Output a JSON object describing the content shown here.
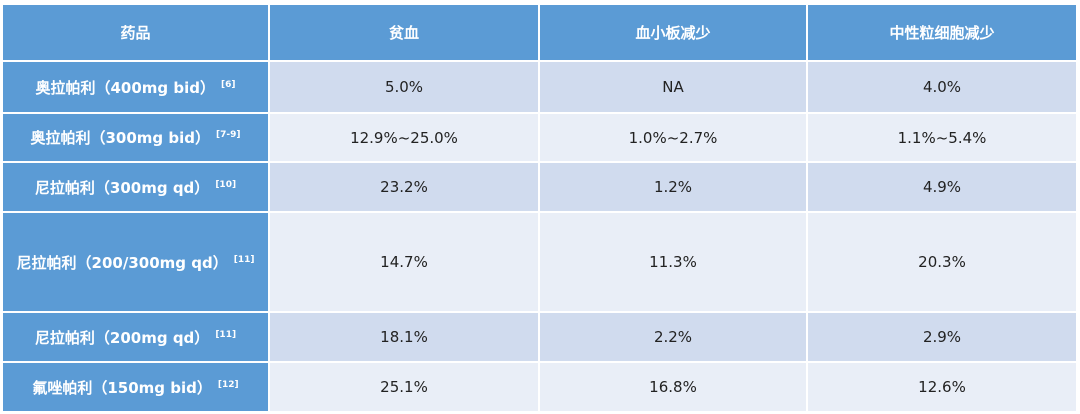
{
  "table": {
    "header": [
      "药品",
      "贫血",
      "血小板减少",
      "中性粒细胞减少"
    ],
    "rows": [
      {
        "drug": "奥拉帕利（400mg bid）",
        "ref": "[6]",
        "values": [
          "5.0%",
          "NA",
          "4.0%"
        ]
      },
      {
        "drug": "奥拉帕利（300mg bid）",
        "ref": "[7-9]",
        "values": [
          "12.9%~25.0%",
          "1.0%~2.7%",
          "1.1%~5.4%"
        ]
      },
      {
        "drug": "尼拉帕利（300mg qd）",
        "ref": "[10]",
        "values": [
          "23.2%",
          "1.2%",
          "4.9%"
        ]
      },
      {
        "drug": "尼拉帕利（200/300mg qd）",
        "ref": "[11]",
        "values": [
          "14.7%",
          "11.3%",
          "20.3%"
        ]
      },
      {
        "drug": "尼拉帕利（200mg qd）",
        "ref": "[11]",
        "values": [
          "18.1%",
          "2.2%",
          "2.9%"
        ]
      },
      {
        "drug": "氟唑帕利（150mg bid）",
        "ref": "[12]",
        "values": [
          "25.1%",
          "16.8%",
          "12.6%"
        ]
      }
    ]
  }
}
